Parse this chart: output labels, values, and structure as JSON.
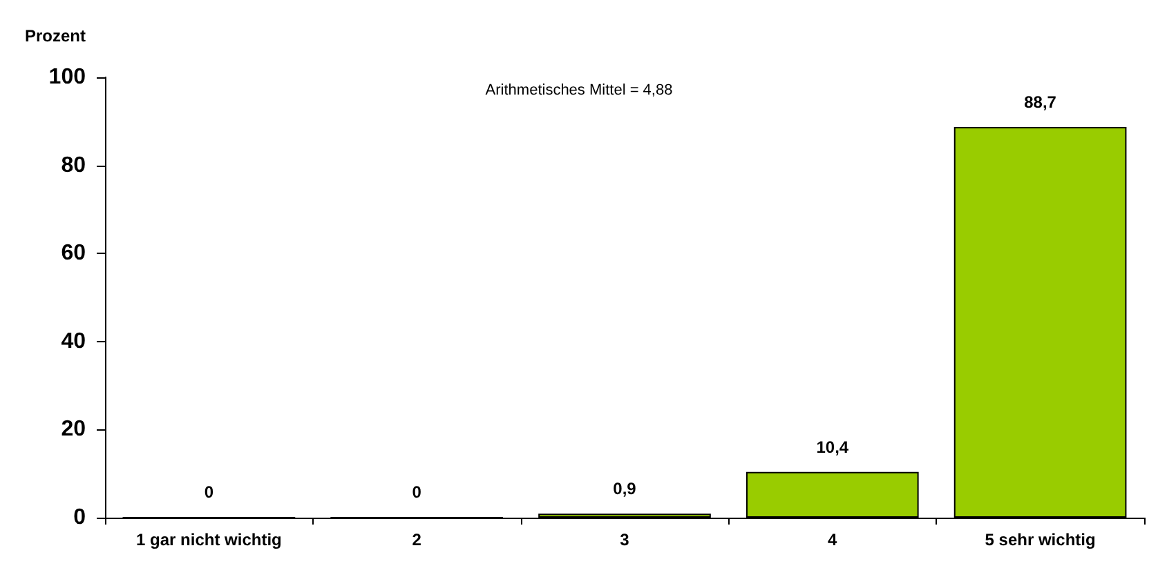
{
  "chart_data": {
    "type": "bar",
    "ylabel": "Prozent",
    "categories": [
      "1 gar nicht wichtig",
      "2",
      "3",
      "4",
      "5 sehr wichtig"
    ],
    "values": [
      0,
      0,
      0.9,
      10.4,
      88.7
    ],
    "value_labels": [
      "0",
      "0",
      "0,9",
      "10,4",
      "88,7"
    ],
    "color": "#99cc00",
    "ylim": [
      0,
      100
    ],
    "yticks": [
      0,
      20,
      40,
      60,
      80,
      100
    ],
    "grid": false,
    "annotations": [
      "Arithmetisches Mittel = 4,88"
    ]
  }
}
